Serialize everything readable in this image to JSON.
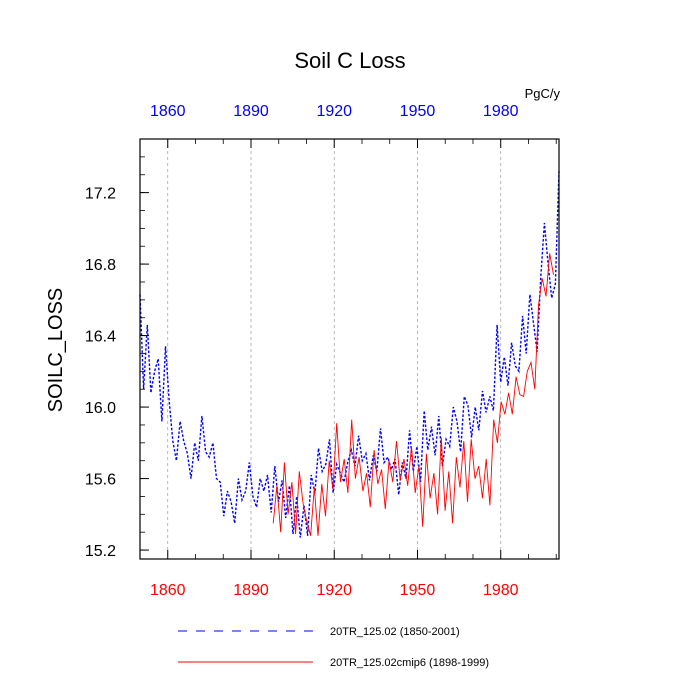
{
  "chart_data": {
    "type": "line",
    "title": "Soil C Loss",
    "units": "PgC/y",
    "ylabel": "SOILC_LOSS",
    "xlabel": "",
    "xlim": [
      1850,
      2001
    ],
    "ylim": [
      15.15,
      17.5
    ],
    "xticks": [
      1860,
      1890,
      1920,
      1950,
      1980
    ],
    "xtick_labels": [
      "1860",
      "1890",
      "1920",
      "1950",
      "1980"
    ],
    "yticks": [
      15.2,
      15.6,
      16.0,
      16.4,
      16.8,
      17.2
    ],
    "ytick_labels": [
      "15.2",
      "15.6",
      "16.0",
      "16.4",
      "16.8",
      "17.2"
    ],
    "grid": "vertical dashed at x ticks",
    "top_axis_color": "#0000ff",
    "bottom_axis_color": "#ff0000",
    "series": [
      {
        "name": "20TR_125.02 (1850-2001)",
        "color": "#0000ff",
        "style": "dashed",
        "x_start": 1850,
        "values": [
          16.63,
          16.1,
          16.46,
          16.08,
          16.2,
          16.27,
          15.92,
          16.34,
          16.04,
          15.81,
          15.7,
          15.92,
          15.81,
          15.74,
          15.6,
          15.8,
          15.7,
          15.95,
          15.75,
          15.72,
          15.8,
          15.6,
          15.58,
          15.39,
          15.53,
          15.47,
          15.35,
          15.6,
          15.48,
          15.53,
          15.69,
          15.5,
          15.44,
          15.6,
          15.53,
          15.62,
          15.41,
          15.67,
          15.47,
          15.59,
          15.38,
          15.56,
          15.29,
          15.5,
          15.27,
          15.45,
          15.28,
          15.62,
          15.52,
          15.77,
          15.64,
          15.68,
          15.82,
          15.52,
          15.68,
          15.63,
          15.58,
          15.69,
          15.76,
          15.67,
          15.84,
          15.7,
          15.74,
          15.59,
          15.73,
          15.64,
          15.88,
          15.69,
          15.72,
          15.65,
          15.71,
          15.51,
          15.69,
          15.6,
          15.87,
          15.64,
          15.78,
          15.58,
          15.98,
          15.76,
          15.89,
          15.73,
          15.95,
          15.67,
          15.82,
          15.78,
          16.0,
          15.92,
          15.75,
          16.06,
          16.01,
          15.83,
          16.0,
          15.87,
          16.09,
          15.97,
          16.06,
          15.98,
          16.46,
          16.14,
          16.28,
          16.12,
          16.36,
          16.23,
          16.2,
          16.51,
          16.3,
          16.63,
          16.47,
          16.31,
          16.73,
          17.03,
          16.8,
          16.61,
          16.69,
          17.32
        ],
        "note": "x values = x_start + index*1.3 (approx. 1850-2001)"
      },
      {
        "name": "20TR_125.02cmip6 (1898-1999)",
        "color": "#ff0000",
        "style": "solid",
        "x_start": 1898,
        "values": [
          15.35,
          15.56,
          15.3,
          15.69,
          15.4,
          15.58,
          15.29,
          15.64,
          15.46,
          15.36,
          15.28,
          15.55,
          15.28,
          15.57,
          15.39,
          15.7,
          15.54,
          15.91,
          15.58,
          15.71,
          15.52,
          15.93,
          15.6,
          15.72,
          15.53,
          15.63,
          15.44,
          15.76,
          15.57,
          15.65,
          15.43,
          15.7,
          15.58,
          15.81,
          15.59,
          15.71,
          15.56,
          15.78,
          15.52,
          15.67,
          15.33,
          15.74,
          15.49,
          15.63,
          15.4,
          15.83,
          15.42,
          15.64,
          15.35,
          15.72,
          15.55,
          15.81,
          15.47,
          15.82,
          15.6,
          15.67,
          15.49,
          15.71,
          15.45,
          15.93,
          15.8,
          16.03,
          15.96,
          16.08,
          15.96,
          16.17,
          16.07,
          16.06,
          16.2,
          16.25,
          16.1,
          16.57,
          16.72,
          16.62,
          16.86,
          16.74
        ],
        "note": "x values = x_start + index*1.333 (approx. 1898-1999)"
      }
    ],
    "legend": {
      "position": "bottom",
      "entries": [
        "20TR_125.02 (1850-2001)",
        "20TR_125.02cmip6 (1898-1999)"
      ]
    }
  }
}
